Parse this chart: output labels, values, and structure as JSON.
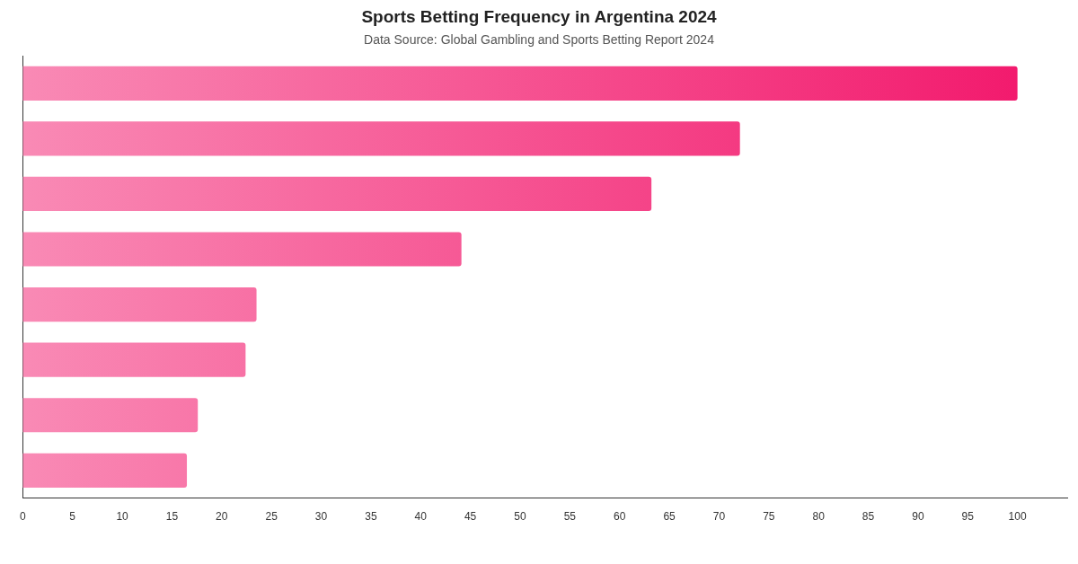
{
  "chart_data": {
    "type": "bar",
    "orientation": "horizontal",
    "title": "Sports Betting Frequency in Argentina 2024",
    "subtitle": "Data Source: Global Gambling and Sports Betting Report 2024",
    "categories": [
      null,
      null,
      null,
      null,
      null,
      null,
      null,
      null
    ],
    "values": [
      100,
      72.1,
      63.2,
      44.1,
      23.5,
      22.4,
      17.6,
      16.5
    ],
    "color": "#f2156a",
    "xlim": [
      0,
      105
    ],
    "xticks": [
      0,
      5,
      10,
      15,
      20,
      25,
      30,
      35,
      40,
      45,
      50,
      55,
      60,
      65,
      70,
      75,
      80,
      85,
      90,
      95,
      100
    ],
    "grid": false,
    "legend": false
  }
}
